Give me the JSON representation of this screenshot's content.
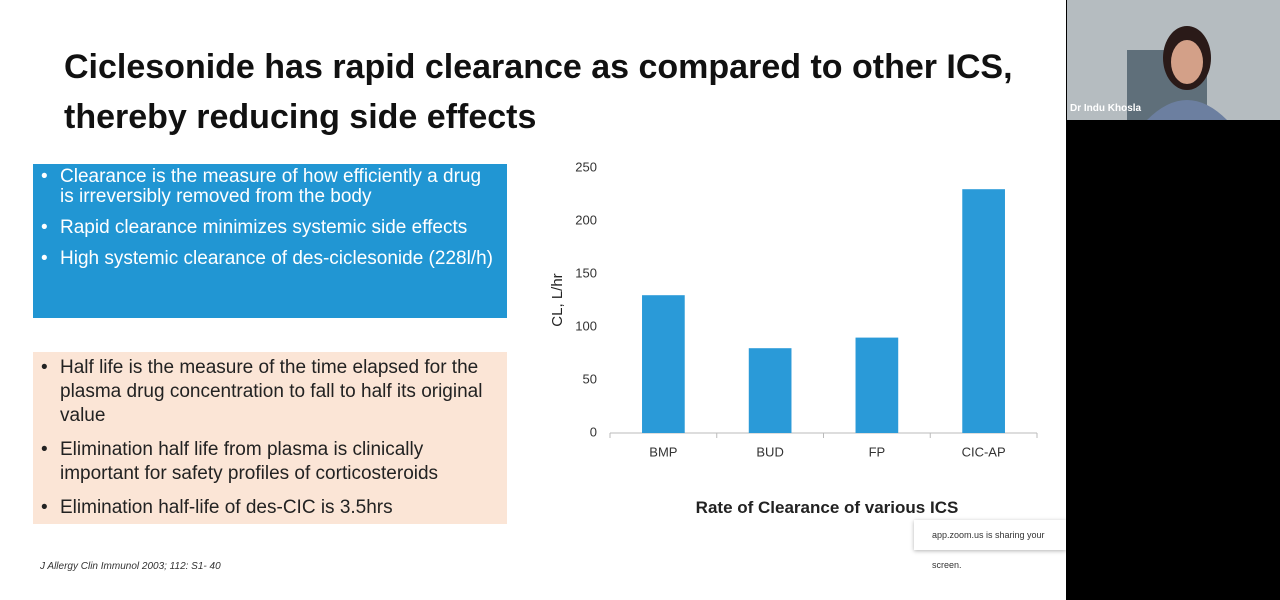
{
  "slide": {
    "title": "Ciclesonide has rapid clearance as compared to other ICS, thereby reducing side effects",
    "box1": [
      "Clearance is the measure of how efficiently a drug is irreversibly removed from the body",
      "Rapid clearance minimizes systemic side effects",
      "High systemic clearance of des-ciclesonide (228l/h)"
    ],
    "box2": [
      "Half life is the measure of the time elapsed for the plasma drug concentration to fall to half its original value",
      "Elimination half life from plasma is clinically important for safety profiles of corticosteroids",
      "Elimination half-life of des-CIC is 3.5hrs"
    ],
    "citation": "J Allergy Clin Immunol 2003; 112: S1- 40"
  },
  "chart_data": {
    "type": "bar",
    "title": "Rate of Clearance of various ICS",
    "y_label": "CL, L/hr",
    "categories": [
      "BMP",
      "BUD",
      "FP",
      "CIC-AP"
    ],
    "values": [
      130,
      80,
      90,
      230
    ],
    "color": "#2a9ad8",
    "ylim": [
      0,
      250
    ],
    "yticks": [
      0,
      50,
      100,
      150,
      200,
      250
    ],
    "grid": false
  },
  "participant": {
    "name": "Dr Indu Khosla"
  },
  "share_notice": "app.zoom.us is sharing your screen."
}
